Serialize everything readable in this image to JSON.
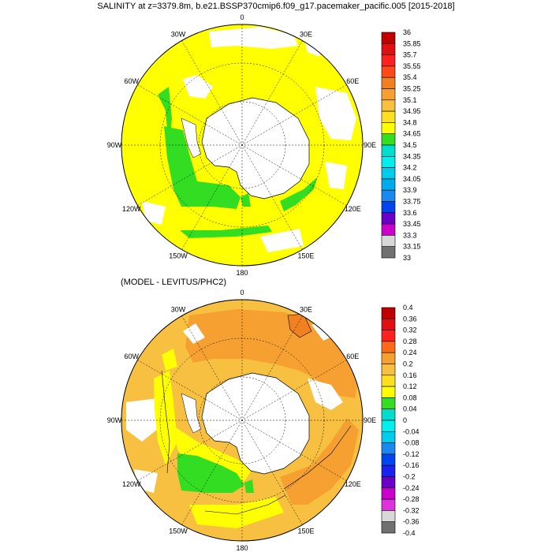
{
  "title_top": "SALINITY at z=3379.8m, b.e21.BSSP370cmip6.f09_g17.pacemaker_pacific.005 [2015-2018]",
  "title_bottom": "(MODEL - LEVITUS/PHC2)",
  "longitude_labels": [
    "0",
    "30E",
    "60E",
    "90E",
    "120E",
    "150E",
    "180",
    "150W",
    "120W",
    "90W",
    "60W",
    "30W"
  ],
  "colorbar_top": {
    "labels": [
      "36",
      "35.85",
      "35.7",
      "35.55",
      "35.4",
      "35.25",
      "35.1",
      "34.95",
      "34.8",
      "34.65",
      "34.5",
      "34.35",
      "34.2",
      "34.05",
      "33.9",
      "33.75",
      "33.6",
      "33.45",
      "33.3",
      "33.15",
      "33"
    ],
    "colors": [
      "#c00000",
      "#e01010",
      "#ff2020",
      "#ff4a1a",
      "#f08020",
      "#f5a030",
      "#f8c040",
      "#ffe020",
      "#ffff00",
      "#33dd22",
      "#00ddcc",
      "#00eeee",
      "#00ccee",
      "#00aaee",
      "#1a88ee",
      "#0044ee",
      "#6a00c8",
      "#cc00cc",
      "#d8d8d8",
      "#707070"
    ]
  },
  "colorbar_bottom": {
    "labels": [
      "0.4",
      "0.36",
      "0.32",
      "0.28",
      "0.24",
      "0.2",
      "0.16",
      "0.12",
      "0.08",
      "0.04",
      "0",
      "-0.04",
      "-0.08",
      "-0.12",
      "-0.16",
      "-0.2",
      "-0.24",
      "-0.28",
      "-0.32",
      "-0.36",
      "-0.4"
    ],
    "colors": [
      "#c00000",
      "#e01010",
      "#ff2020",
      "#ff6a1a",
      "#f5a030",
      "#f8c040",
      "#ffe020",
      "#ffff00",
      "#33dd22",
      "#00ddcc",
      "#00eeee",
      "#00ccee",
      "#1a88ee",
      "#0044ee",
      "#1a22ee",
      "#6a00c8",
      "#cc00cc",
      "#dd33dd",
      "#d8d8d8",
      "#707070"
    ]
  }
}
